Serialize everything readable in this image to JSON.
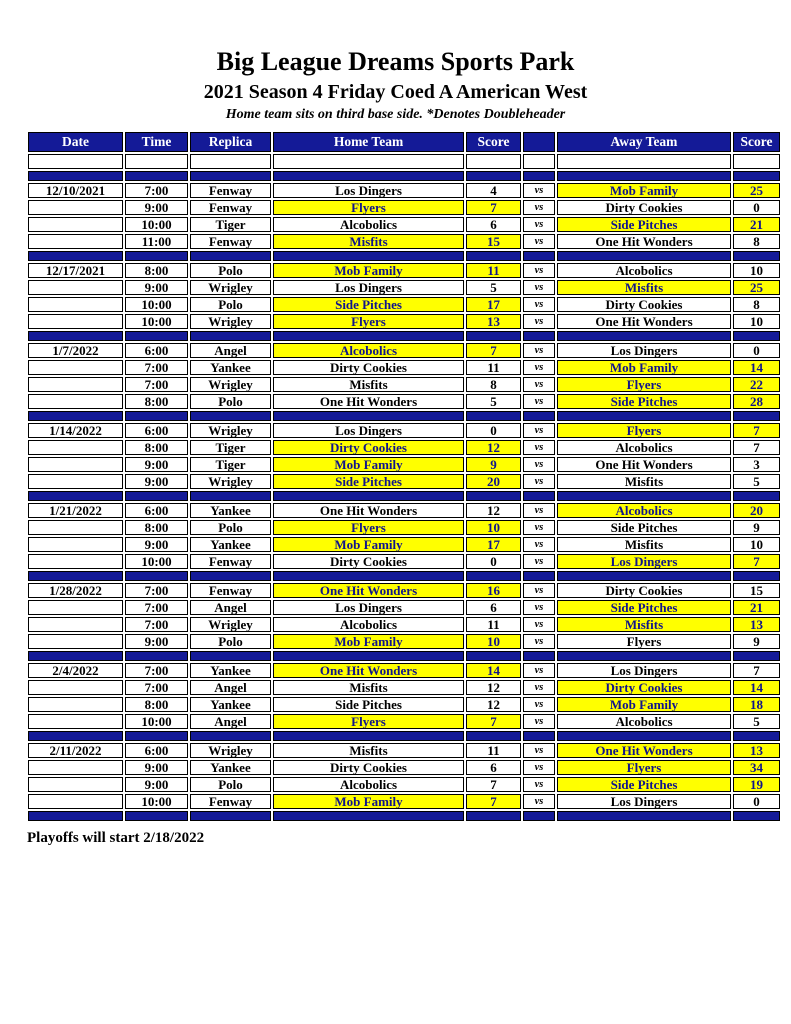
{
  "page": {
    "title": "Big League Dreams Sports Park",
    "subtitle": "2021 Season 4 Friday Coed A American West",
    "note": "Home team sits on third base side.  *Denotes Doubleheader",
    "footer": "Playoffs will start 2/18/2022"
  },
  "colors": {
    "navy_bar": "#141a97",
    "highlight_yellow": "#ffff00",
    "winner_text_navy": "#10148c",
    "header_text": "#ffffff",
    "body_text": "#000000"
  },
  "table": {
    "headers": [
      "Date",
      "Time",
      "Replica",
      "Home Team",
      "Score",
      "",
      "Away Team",
      "Score"
    ],
    "vs_label": "vs",
    "groups": [
      {
        "date": "12/10/2021",
        "games": [
          {
            "time": "7:00",
            "replica": "Fenway",
            "home": "Los Dingers",
            "home_score": "4",
            "away": "Mob Family",
            "away_score": "25",
            "winner": "away"
          },
          {
            "time": "9:00",
            "replica": "Fenway",
            "home": "Flyers",
            "home_score": "7",
            "away": "Dirty Cookies",
            "away_score": "0",
            "winner": "home"
          },
          {
            "time": "10:00",
            "replica": "Tiger",
            "home": "Alcobolics",
            "home_score": "6",
            "away": "Side Pitches",
            "away_score": "21",
            "winner": "away"
          },
          {
            "time": "11:00",
            "replica": "Fenway",
            "home": "Misfits",
            "home_score": "15",
            "away": "One Hit Wonders",
            "away_score": "8",
            "winner": "home"
          }
        ]
      },
      {
        "date": "12/17/2021",
        "games": [
          {
            "time": "8:00",
            "replica": "Polo",
            "home": "Mob Family",
            "home_score": "11",
            "away": "Alcobolics",
            "away_score": "10",
            "winner": "home"
          },
          {
            "time": "9:00",
            "replica": "Wrigley",
            "home": "Los Dingers",
            "home_score": "5",
            "away": "Misfits",
            "away_score": "25",
            "winner": "away"
          },
          {
            "time": "10:00",
            "replica": "Polo",
            "home": "Side Pitches",
            "home_score": "17",
            "away": "Dirty Cookies",
            "away_score": "8",
            "winner": "home"
          },
          {
            "time": "10:00",
            "replica": "Wrigley",
            "home": "Flyers",
            "home_score": "13",
            "away": "One Hit Wonders",
            "away_score": "10",
            "winner": "home"
          }
        ]
      },
      {
        "date": "1/7/2022",
        "games": [
          {
            "time": "6:00",
            "replica": "Angel",
            "home": "Alcobolics",
            "home_score": "7",
            "away": "Los Dingers",
            "away_score": "0",
            "winner": "home"
          },
          {
            "time": "7:00",
            "replica": "Yankee",
            "home": "Dirty Cookies",
            "home_score": "11",
            "away": "Mob Family",
            "away_score": "14",
            "winner": "away"
          },
          {
            "time": "7:00",
            "replica": "Wrigley",
            "home": "Misfits",
            "home_score": "8",
            "away": "Flyers",
            "away_score": "22",
            "winner": "away"
          },
          {
            "time": "8:00",
            "replica": "Polo",
            "home": "One Hit Wonders",
            "home_score": "5",
            "away": "Side Pitches",
            "away_score": "28",
            "winner": "away"
          }
        ]
      },
      {
        "date": "1/14/2022",
        "games": [
          {
            "time": "6:00",
            "replica": "Wrigley",
            "home": "Los Dingers",
            "home_score": "0",
            "away": "Flyers",
            "away_score": "7",
            "winner": "away"
          },
          {
            "time": "8:00",
            "replica": "Tiger",
            "home": "Dirty Cookies",
            "home_score": "12",
            "away": "Alcobolics",
            "away_score": "7",
            "winner": "home"
          },
          {
            "time": "9:00",
            "replica": "Tiger",
            "home": "Mob Family",
            "home_score": "9",
            "away": "One Hit Wonders",
            "away_score": "3",
            "winner": "home"
          },
          {
            "time": "9:00",
            "replica": "Wrigley",
            "home": "Side Pitches",
            "home_score": "20",
            "away": "Misfits",
            "away_score": "5",
            "winner": "home"
          }
        ]
      },
      {
        "date": "1/21/2022",
        "games": [
          {
            "time": "6:00",
            "replica": "Yankee",
            "home": "One Hit Wonders",
            "home_score": "12",
            "away": "Alcobolics",
            "away_score": "20",
            "winner": "away"
          },
          {
            "time": "8:00",
            "replica": "Polo",
            "home": "Flyers",
            "home_score": "10",
            "away": "Side Pitches",
            "away_score": "9",
            "winner": "home"
          },
          {
            "time": "9:00",
            "replica": "Yankee",
            "home": "Mob Family",
            "home_score": "17",
            "away": "Misfits",
            "away_score": "10",
            "winner": "home"
          },
          {
            "time": "10:00",
            "replica": "Fenway",
            "home": "Dirty Cookies",
            "home_score": "0",
            "away": "Los Dingers",
            "away_score": "7",
            "winner": "away"
          }
        ]
      },
      {
        "date": "1/28/2022",
        "games": [
          {
            "time": "7:00",
            "replica": "Fenway",
            "home": "One Hit Wonders",
            "home_score": "16",
            "away": "Dirty Cookies",
            "away_score": "15",
            "winner": "home"
          },
          {
            "time": "7:00",
            "replica": "Angel",
            "home": "Los Dingers",
            "home_score": "6",
            "away": "Side Pitches",
            "away_score": "21",
            "winner": "away"
          },
          {
            "time": "7:00",
            "replica": "Wrigley",
            "home": "Alcobolics",
            "home_score": "11",
            "away": "Misfits",
            "away_score": "13",
            "winner": "away"
          },
          {
            "time": "9:00",
            "replica": "Polo",
            "home": "Mob Family",
            "home_score": "10",
            "away": "Flyers",
            "away_score": "9",
            "winner": "home"
          }
        ]
      },
      {
        "date": "2/4/2022",
        "games": [
          {
            "time": "7:00",
            "replica": "Yankee",
            "home": "One Hit Wonders",
            "home_score": "14",
            "away": "Los Dingers",
            "away_score": "7",
            "winner": "home"
          },
          {
            "time": "7:00",
            "replica": "Angel",
            "home": "Misfits",
            "home_score": "12",
            "away": "Dirty Cookies",
            "away_score": "14",
            "winner": "away"
          },
          {
            "time": "8:00",
            "replica": "Yankee",
            "home": "Side Pitches",
            "home_score": "12",
            "away": "Mob Family",
            "away_score": "18",
            "winner": "away"
          },
          {
            "time": "10:00",
            "replica": "Angel",
            "home": "Flyers",
            "home_score": "7",
            "away": "Alcobolics",
            "away_score": "5",
            "winner": "home"
          }
        ]
      },
      {
        "date": "2/11/2022",
        "games": [
          {
            "time": "6:00",
            "replica": "Wrigley",
            "home": "Misfits",
            "home_score": "11",
            "away": "One Hit Wonders",
            "away_score": "13",
            "winner": "away"
          },
          {
            "time": "9:00",
            "replica": "Yankee",
            "home": "Dirty Cookies",
            "home_score": "6",
            "away": "Flyers",
            "away_score": "34",
            "winner": "away"
          },
          {
            "time": "9:00",
            "replica": "Polo",
            "home": "Alcobolics",
            "home_score": "7",
            "away": "Side Pitches",
            "away_score": "19",
            "winner": "away"
          },
          {
            "time": "10:00",
            "replica": "Fenway",
            "home": "Mob Family",
            "home_score": "7",
            "away": "Los Dingers",
            "away_score": "0",
            "winner": "home"
          }
        ]
      }
    ]
  }
}
